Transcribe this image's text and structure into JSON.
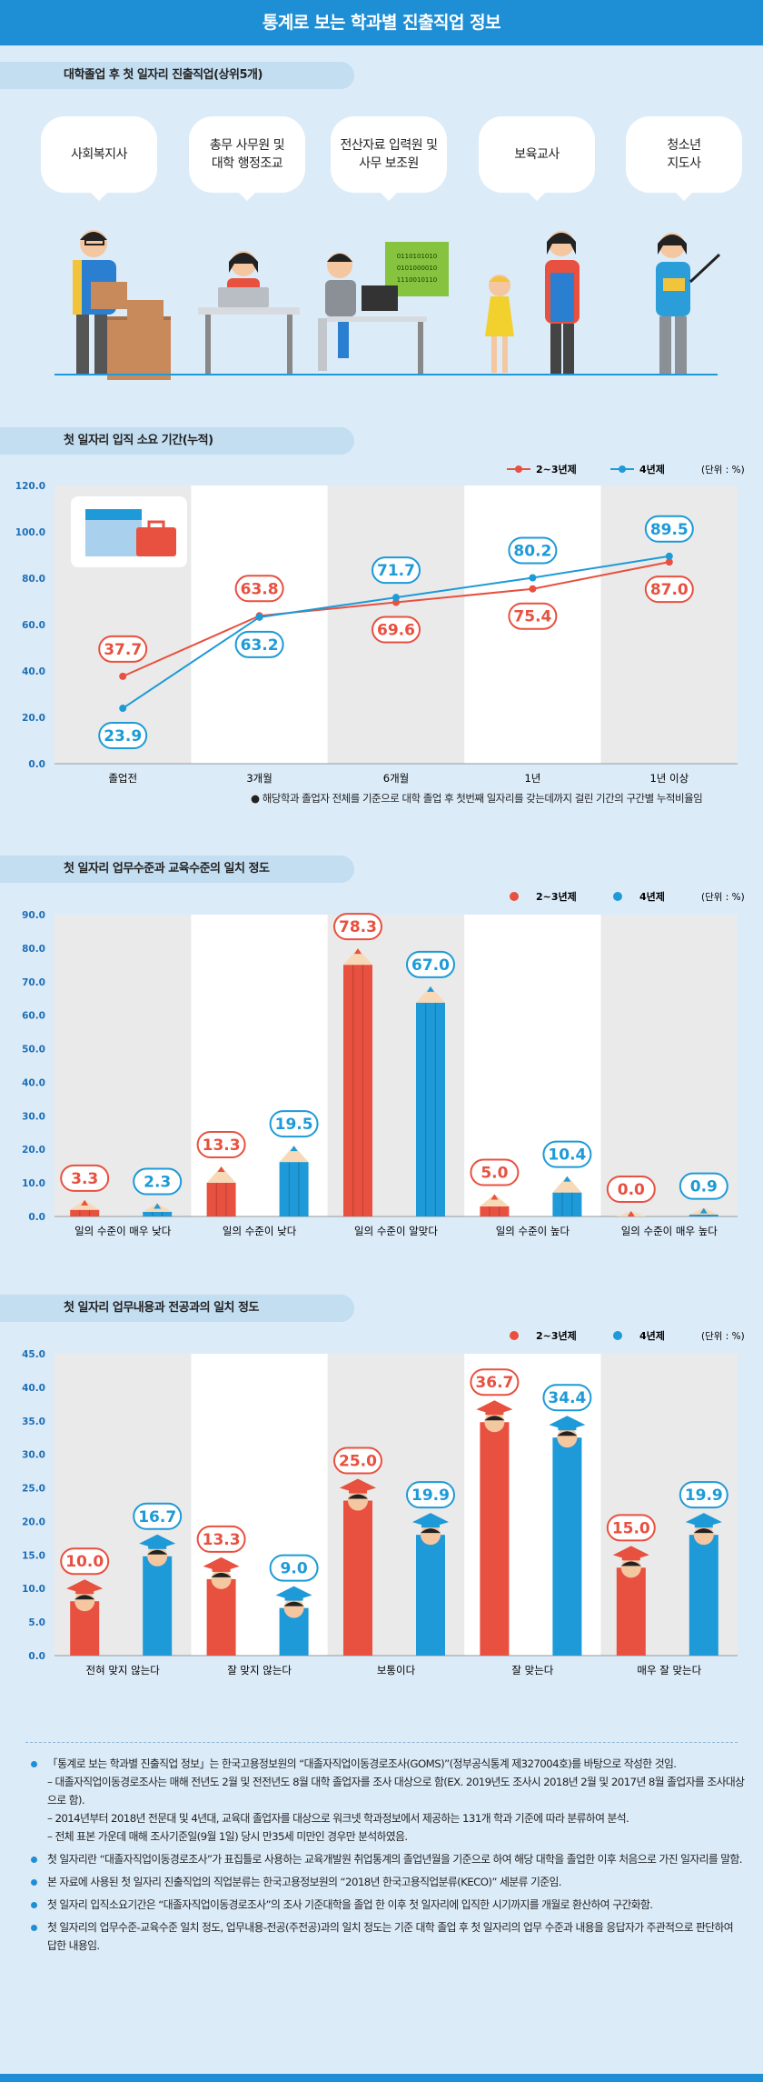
{
  "header": {
    "title": "통계로 보는 학과별 진출직업 정보"
  },
  "section1": {
    "title": "대학졸업 후 첫 일자리 진출직업(상위5개)",
    "jobs": [
      "사회복지사",
      "총무 사무원 및\n대학 행정조교",
      "전산자료 입력원 및\n사무 보조원",
      "보육교사",
      "청소년\n지도사"
    ],
    "binary_text": [
      "0110101010",
      "0101000010",
      "1110010110"
    ]
  },
  "chart_data": [
    {
      "type": "line",
      "title": "첫 일자리 입직 소요 기간(누적)",
      "unit": "(단위 : %)",
      "categories": [
        "졸업전",
        "3개월",
        "6개월",
        "1년",
        "1년 이상"
      ],
      "series": [
        {
          "name": "2~3년제",
          "color": "#e8503f",
          "values": [
            37.7,
            63.8,
            69.6,
            75.4,
            87.0
          ]
        },
        {
          "name": "4년제",
          "color": "#1d9ad7",
          "values": [
            23.9,
            63.2,
            71.7,
            80.2,
            89.5
          ]
        }
      ],
      "ylim": [
        0,
        120
      ],
      "yticks": [
        "0.0",
        "20.0",
        "40.0",
        "60.0",
        "80.0",
        "100.0",
        "120.0"
      ],
      "footnote": "해당학과 졸업자 전체를 기준으로 대학 졸업 후 첫번째 일자리를 갖는데까지 걸린 기간의 구간별 누적비율임"
    },
    {
      "type": "bar",
      "title": "첫 일자리 업무수준과 교육수준의 일치 정도",
      "unit": "(단위 : %)",
      "categories": [
        "일의 수준이 매우 낮다",
        "일의 수준이 낮다",
        "일의 수준이 알맞다",
        "일의 수준이 높다",
        "일의 수준이 매우 높다"
      ],
      "series": [
        {
          "name": "2~3년제",
          "color": "#e8503f",
          "values": [
            3.3,
            13.3,
            78.3,
            5.0,
            0.0
          ]
        },
        {
          "name": "4년제",
          "color": "#1d9ad7",
          "values": [
            2.3,
            19.5,
            67.0,
            10.4,
            0.9
          ]
        }
      ],
      "ylim": [
        0,
        90
      ],
      "yticks": [
        "0.0",
        "10.0",
        "20.0",
        "30.0",
        "40.0",
        "50.0",
        "60.0",
        "70.0",
        "80.0",
        "90.0"
      ]
    },
    {
      "type": "bar",
      "title": "첫 일자리 업무내용과 전공과의 일치 정도",
      "unit": "(단위 : %)",
      "categories": [
        "전혀 맞지 않는다",
        "잘 맞지 않는다",
        "보통이다",
        "잘 맞는다",
        "매우 잘 맞는다"
      ],
      "series": [
        {
          "name": "2~3년제",
          "color": "#e8503f",
          "values": [
            10.0,
            13.3,
            25.0,
            36.7,
            15.0
          ]
        },
        {
          "name": "4년제",
          "color": "#1d9ad7",
          "values": [
            16.7,
            9.0,
            19.9,
            34.4,
            19.9
          ]
        }
      ],
      "ylim": [
        0,
        45
      ],
      "yticks": [
        "0.0",
        "5.0",
        "10.0",
        "15.0",
        "20.0",
        "25.0",
        "30.0",
        "35.0",
        "40.0",
        "45.0"
      ]
    }
  ],
  "notes": [
    {
      "text": "「통계로 보는 학과별 진출직업 정보」는 한국고용정보원의 “대졸자직업이동경로조사(GOMS)”(정부공식통계 제327004호)를 바탕으로 작성한 것임.",
      "subs": [
        "– 대졸자직업이동경로조사는 매해 전년도 2월 및 전전년도 8월 대학 졸업자를 조사 대상으로 함(EX. 2019년도 조사시 2018년 2월 및 2017년 8월 졸업자를 조사대상으로 함).",
        "– 2014년부터 2018년 전문대 및 4년대, 교육대 졸업자를 대상으로 워크넷 학과정보에서 제공하는 131개 학과 기준에 따라 분류하여 분석.",
        "– 전체 표본 가운데 매해 조사기준일(9월 1일) 당시 만35세 미만인 경우만 분석하였음."
      ]
    },
    {
      "text": "첫 일자리란 “대졸자직업이동경로조사”가 표집틀로 사용하는 교육개발원 취업통계의 졸업년월을 기준으로 하여 해당 대학을 졸업한 이후 처음으로 가진 일자리를 말함.",
      "subs": []
    },
    {
      "text": "본 자료에 사용된 첫 일자리 진출직업의 직업분류는 한국고용정보원의 “2018년 한국고용직업분류(KECO)” 세분류 기준임.",
      "subs": []
    },
    {
      "text": "첫 일자리 입직소요기간은 “대졸자직업이동경로조사”의 조사 기준대학을 졸업 한 이후 첫 일자리에 입직한 시기까지를 개월로 환산하여 구간화함.",
      "subs": []
    },
    {
      "text": "첫 일자리의 업무수준-교육수준 일치 정도, 업무내용-전공(주전공)과의 일치 정도는 기준 대학 졸업 후 첫 일자리의 업무 수준과 내용을 응답자가 주관적으로 판단하여 답한 내용임.",
      "subs": []
    }
  ]
}
